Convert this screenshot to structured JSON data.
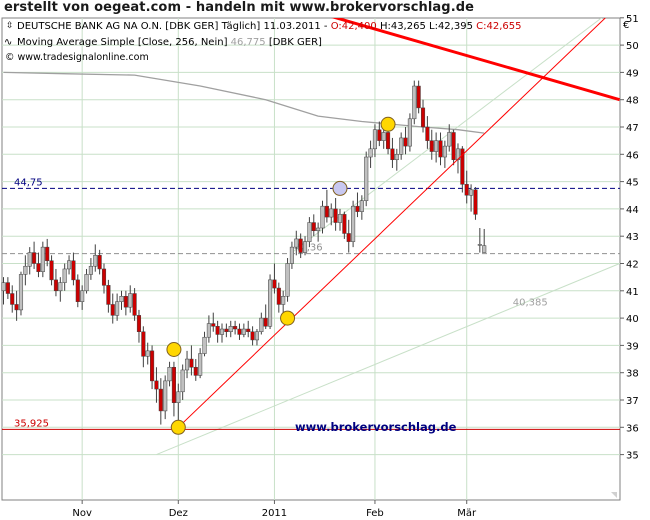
{
  "banner": "erstellt von oegeat.com - handeln mit www.brokervorschlag.de",
  "header": {
    "line1_prefix": "DEUTSCHE BANK AG NA O.N. [DBK GER]  Täglich] 11.03.2011 - ",
    "open_label": "O:42,400",
    "hl_label": " H:43,265 L:42,395 ",
    "close_label": "C:42,655",
    "line2_prefix": "Moving Average Simple [Close, 256, Nein] ",
    "ma_value": "46,775",
    "line2_suffix": " [DBK GER]",
    "source": "© www.tradesignalonline.com",
    "currency": "€"
  },
  "watermark": "www.brokervorschlag.de",
  "colors": {
    "grid": "#c8e0c8",
    "up_candle": "#c0c0c0",
    "down_candle": "#cc0000",
    "trendline": "#ff0000",
    "ma_line": "#a0a0a0",
    "level_line": "#000080",
    "marker_fill": "#ffd700",
    "watermark": "#000080"
  },
  "chart_data": {
    "type": "candlestick",
    "ylim": [
      35,
      51
    ],
    "y_ticks": [
      "35",
      "36",
      "37",
      "38",
      "39",
      "40",
      "41",
      "42",
      "43",
      "44",
      "45",
      "46",
      "47",
      "48",
      "49",
      "50",
      "51"
    ],
    "x_ticks": [
      {
        "label": "Nov",
        "day": 18
      },
      {
        "label": "Dez",
        "day": 40
      },
      {
        "label": "2011",
        "day": 62
      },
      {
        "label": "Feb",
        "day": 85
      },
      {
        "label": "Mär",
        "day": 106
      }
    ],
    "x_range": [
      0,
      141
    ],
    "candles_start_day": 0,
    "candles_ohlc": [
      [
        41.0,
        41.5,
        40.5,
        41.3
      ],
      [
        41.3,
        41.5,
        40.7,
        40.9
      ],
      [
        40.9,
        41.2,
        40.2,
        40.5
      ],
      [
        40.5,
        41.0,
        39.9,
        40.3
      ],
      [
        40.3,
        41.7,
        40.1,
        41.6
      ],
      [
        41.6,
        42.3,
        41.2,
        41.9
      ],
      [
        41.9,
        42.6,
        41.6,
        42.4
      ],
      [
        42.4,
        42.8,
        41.8,
        42.0
      ],
      [
        42.0,
        42.4,
        41.5,
        41.7
      ],
      [
        41.7,
        42.8,
        41.5,
        42.6
      ],
      [
        42.6,
        42.9,
        41.9,
        42.1
      ],
      [
        42.1,
        42.3,
        41.2,
        41.4
      ],
      [
        41.4,
        41.8,
        40.8,
        41.0
      ],
      [
        41.0,
        41.5,
        40.6,
        41.3
      ],
      [
        41.3,
        42.0,
        41.0,
        41.8
      ],
      [
        41.8,
        42.3,
        41.6,
        42.1
      ],
      [
        42.1,
        42.4,
        41.2,
        41.4
      ],
      [
        41.4,
        41.6,
        40.4,
        40.6
      ],
      [
        40.6,
        41.2,
        40.3,
        41.0
      ],
      [
        41.0,
        41.8,
        40.9,
        41.6
      ],
      [
        41.6,
        42.2,
        41.4,
        41.9
      ],
      [
        41.9,
        42.7,
        41.7,
        42.3
      ],
      [
        42.3,
        42.5,
        41.6,
        41.8
      ],
      [
        41.8,
        42.0,
        40.9,
        41.2
      ],
      [
        41.2,
        41.4,
        40.2,
        40.5
      ],
      [
        40.5,
        40.9,
        39.8,
        40.1
      ],
      [
        40.1,
        40.9,
        39.9,
        40.6
      ],
      [
        40.6,
        41.0,
        40.3,
        40.8
      ],
      [
        40.8,
        41.0,
        40.1,
        40.4
      ],
      [
        40.4,
        41.2,
        40.2,
        40.9
      ],
      [
        40.9,
        41.1,
        39.9,
        40.1
      ],
      [
        40.1,
        40.3,
        39.1,
        39.5
      ],
      [
        39.5,
        39.7,
        38.2,
        38.6
      ],
      [
        38.6,
        39.1,
        38.3,
        38.8
      ],
      [
        38.8,
        39.0,
        37.4,
        37.7
      ],
      [
        37.7,
        38.2,
        36.9,
        37.4
      ],
      [
        37.4,
        37.8,
        36.1,
        36.6
      ],
      [
        36.6,
        37.9,
        36.3,
        37.7
      ],
      [
        37.7,
        38.4,
        37.5,
        38.2
      ],
      [
        38.2,
        38.4,
        36.4,
        36.9
      ],
      [
        36.9,
        37.6,
        36.0,
        37.3
      ],
      [
        37.3,
        38.3,
        37.0,
        38.1
      ],
      [
        38.1,
        38.8,
        37.8,
        38.5
      ],
      [
        38.5,
        39.0,
        37.9,
        38.2
      ],
      [
        38.2,
        38.5,
        37.7,
        37.9
      ],
      [
        37.9,
        38.9,
        37.8,
        38.7
      ],
      [
        38.7,
        39.5,
        38.6,
        39.3
      ],
      [
        39.3,
        40.1,
        39.1,
        39.8
      ],
      [
        39.8,
        40.2,
        39.5,
        39.7
      ],
      [
        39.7,
        39.9,
        39.1,
        39.4
      ],
      [
        39.4,
        39.8,
        39.1,
        39.6
      ],
      [
        39.6,
        39.8,
        39.3,
        39.5
      ],
      [
        39.5,
        39.9,
        39.3,
        39.7
      ],
      [
        39.7,
        39.9,
        39.4,
        39.6
      ],
      [
        39.6,
        39.8,
        39.2,
        39.4
      ],
      [
        39.4,
        39.8,
        39.3,
        39.6
      ],
      [
        39.6,
        39.9,
        39.3,
        39.5
      ],
      [
        39.5,
        39.7,
        39.0,
        39.2
      ],
      [
        39.2,
        39.6,
        39.0,
        39.5
      ],
      [
        39.5,
        40.2,
        39.4,
        40.0
      ],
      [
        40.0,
        40.5,
        39.6,
        39.7
      ],
      [
        39.7,
        41.6,
        39.6,
        41.4
      ],
      [
        41.4,
        42.0,
        40.9,
        41.1
      ],
      [
        41.1,
        41.3,
        40.2,
        40.5
      ],
      [
        40.5,
        41.0,
        40.0,
        40.8
      ],
      [
        40.8,
        42.2,
        40.6,
        42.0
      ],
      [
        42.0,
        42.8,
        41.8,
        42.6
      ],
      [
        42.6,
        43.2,
        42.3,
        42.9
      ],
      [
        42.9,
        43.1,
        42.2,
        42.4
      ],
      [
        42.4,
        43.0,
        42.3,
        42.8
      ],
      [
        42.8,
        43.7,
        42.6,
        43.5
      ],
      [
        43.5,
        43.8,
        43.0,
        43.2
      ],
      [
        43.2,
        43.5,
        42.8,
        43.3
      ],
      [
        43.3,
        44.3,
        43.1,
        44.1
      ],
      [
        44.1,
        44.7,
        43.5,
        43.7
      ],
      [
        43.7,
        44.2,
        43.4,
        44.0
      ],
      [
        44.0,
        44.4,
        43.2,
        43.5
      ],
      [
        43.5,
        44.0,
        43.2,
        43.8
      ],
      [
        43.8,
        43.9,
        42.9,
        43.1
      ],
      [
        43.1,
        43.6,
        42.4,
        42.8
      ],
      [
        42.8,
        44.3,
        42.6,
        44.1
      ],
      [
        44.1,
        44.6,
        43.7,
        43.9
      ],
      [
        43.9,
        44.5,
        43.6,
        44.3
      ],
      [
        44.3,
        46.1,
        44.1,
        45.9
      ],
      [
        45.9,
        46.5,
        45.5,
        46.2
      ],
      [
        46.2,
        47.1,
        45.9,
        46.9
      ],
      [
        46.9,
        47.2,
        46.3,
        46.5
      ],
      [
        46.5,
        47.0,
        46.2,
        46.8
      ],
      [
        46.8,
        47.0,
        46.0,
        46.2
      ],
      [
        46.2,
        46.6,
        45.5,
        45.8
      ],
      [
        45.8,
        46.2,
        45.4,
        46.0
      ],
      [
        46.0,
        46.8,
        45.8,
        46.6
      ],
      [
        46.6,
        47.0,
        46.0,
        46.3
      ],
      [
        46.3,
        47.5,
        46.1,
        47.3
      ],
      [
        47.3,
        48.7,
        47.1,
        48.5
      ],
      [
        48.5,
        48.7,
        47.5,
        47.7
      ],
      [
        47.7,
        48.0,
        46.8,
        47.0
      ],
      [
        47.0,
        47.4,
        46.2,
        46.5
      ],
      [
        46.5,
        46.9,
        45.8,
        46.1
      ],
      [
        46.1,
        46.8,
        45.7,
        46.5
      ],
      [
        46.5,
        46.8,
        45.6,
        45.9
      ],
      [
        45.9,
        46.5,
        45.5,
        46.3
      ],
      [
        46.3,
        47.1,
        46.1,
        46.8
      ],
      [
        46.8,
        46.9,
        45.6,
        45.8
      ],
      [
        45.8,
        46.4,
        45.3,
        46.2
      ],
      [
        46.2,
        46.3,
        44.6,
        44.9
      ],
      [
        44.9,
        45.4,
        44.2,
        44.5
      ],
      [
        44.5,
        44.9,
        43.9,
        44.7
      ],
      [
        44.7,
        44.8,
        43.6,
        43.8
      ],
      [
        42.7,
        43.3,
        42.4,
        42.7
      ],
      [
        42.4,
        43.265,
        42.395,
        42.655
      ]
    ],
    "moving_average": {
      "name": "Moving Average Simple [Close, 256, Nein]",
      "points": [
        [
          0,
          49.0
        ],
        [
          15,
          48.95
        ],
        [
          30,
          48.9
        ],
        [
          45,
          48.5
        ],
        [
          60,
          48.0
        ],
        [
          72,
          47.4
        ],
        [
          82,
          47.2
        ],
        [
          96,
          47.0
        ],
        [
          104,
          46.9
        ],
        [
          110,
          46.775
        ]
      ]
    },
    "trendlines": [
      {
        "kind": "support",
        "points": [
          [
            40,
            36.0
          ],
          [
            141,
            51.5
          ]
        ],
        "color": "#ff0000",
        "width": 1
      },
      {
        "kind": "resistance",
        "points": [
          [
            75,
            51.05
          ],
          [
            141,
            48.0
          ]
        ],
        "color": "#ff0000",
        "width": 3
      },
      {
        "kind": "upper-channel",
        "points": [
          [
            66,
            42.4
          ],
          [
            141,
            51.5
          ]
        ],
        "color": "#c8e0c8",
        "width": 1
      },
      {
        "kind": "lower-channel",
        "points": [
          [
            35,
            35.0
          ],
          [
            141,
            42.0
          ]
        ],
        "color": "#c8e0c8",
        "width": 1
      }
    ],
    "levels": [
      {
        "value": 44.75,
        "label": "44,75",
        "style": "dashed",
        "color": "#000080"
      },
      {
        "value": 42.36,
        "label": "42,36",
        "style": "dashed",
        "color": "#909090"
      },
      {
        "value": 35.925,
        "label": "35,925",
        "style": "solid",
        "color": "#cc0000"
      }
    ],
    "annotations": [
      {
        "label": "40,385",
        "day": 117,
        "value": 40.385
      }
    ],
    "markers": [
      {
        "day": 40,
        "value": 36.0,
        "fill": "#ffd700"
      },
      {
        "day": 39,
        "value": 38.85,
        "fill": "#ffd700"
      },
      {
        "day": 65,
        "value": 40.0,
        "fill": "#ffd700"
      },
      {
        "day": 77,
        "value": 44.75,
        "fill": "#c8c8f0"
      },
      {
        "day": 88,
        "value": 47.1,
        "fill": "#ffd700"
      }
    ]
  }
}
